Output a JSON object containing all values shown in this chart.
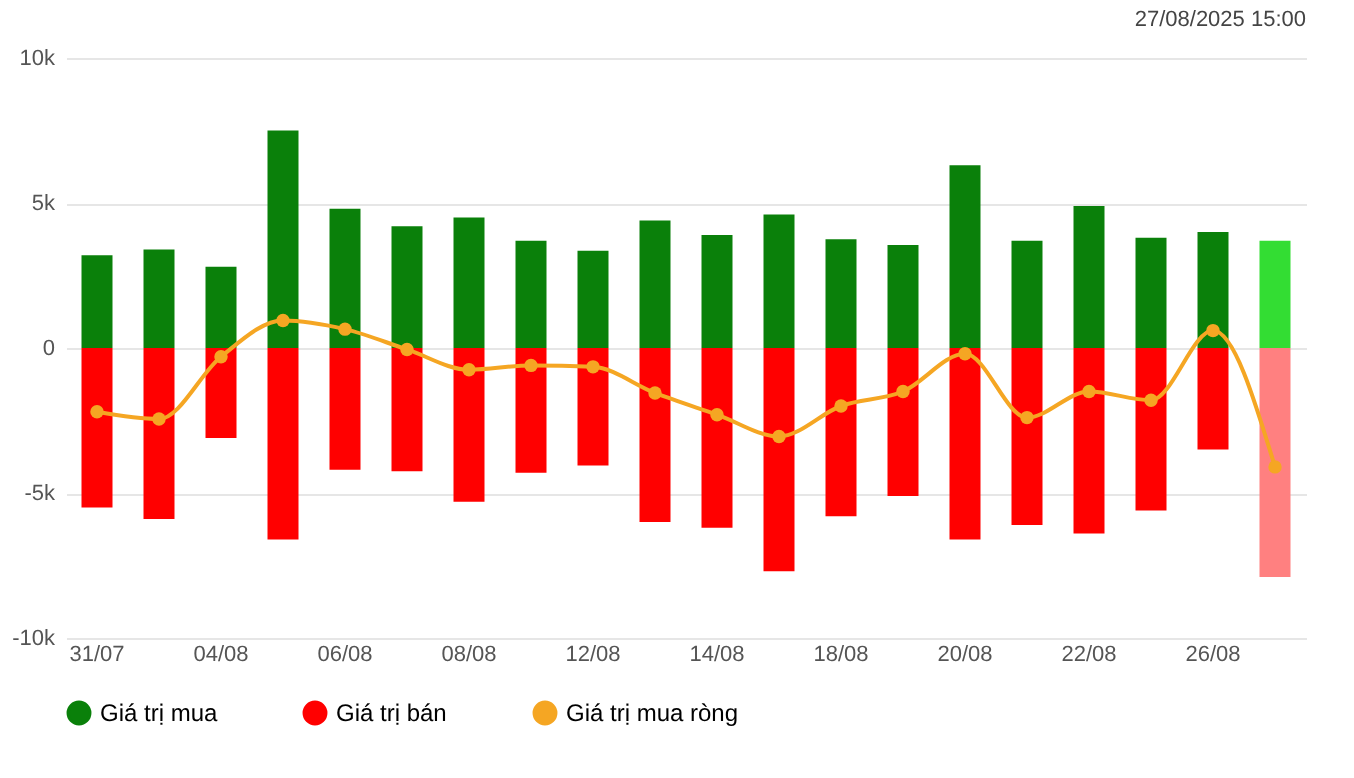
{
  "chart_data": {
    "type": "bar",
    "categories": [
      "31/07",
      null,
      "04/08",
      null,
      "06/08",
      null,
      "08/08",
      null,
      "12/08",
      null,
      "14/08",
      null,
      "18/08",
      null,
      "20/08",
      null,
      "22/08",
      null,
      "26/08",
      null
    ],
    "series": [
      {
        "name": "Giá trị mua",
        "color": "#0a800a",
        "colors": [
          "#0a800a",
          "#0a800a",
          "#0a800a",
          "#0a800a",
          "#0a800a",
          "#0a800a",
          "#0a800a",
          "#0a800a",
          "#0a800a",
          "#0a800a",
          "#0a800a",
          "#0a800a",
          "#0a800a",
          "#0a800a",
          "#0a800a",
          "#0a800a",
          "#0a800a",
          "#0a800a",
          "#0a800a",
          "#33dd33"
        ],
        "values": [
          3200,
          3400,
          2800,
          7500,
          4800,
          4200,
          4500,
          3700,
          3350,
          4400,
          3900,
          4600,
          3750,
          3550,
          6300,
          3700,
          4900,
          3800,
          4000,
          3700
        ]
      },
      {
        "name": "Giá trị bán",
        "color": "#ff0000",
        "colors": [
          "#ff0000",
          "#ff0000",
          "#ff0000",
          "#ff0000",
          "#ff0000",
          "#ff0000",
          "#ff0000",
          "#ff0000",
          "#ff0000",
          "#ff0000",
          "#ff0000",
          "#ff0000",
          "#ff0000",
          "#ff0000",
          "#ff0000",
          "#ff0000",
          "#ff0000",
          "#ff0000",
          "#ff0000",
          "#ff8080"
        ],
        "values": [
          -5500,
          -5900,
          -3100,
          -6600,
          -4200,
          -4250,
          -5300,
          -4300,
          -4050,
          -6000,
          -6200,
          -7700,
          -5800,
          -5100,
          -6600,
          -6100,
          -6400,
          -5600,
          -3500,
          -7900
        ]
      },
      {
        "name": "Giá trị mua ròng",
        "type": "line",
        "color": "#f5a623",
        "values": [
          -2200,
          -2450,
          -300,
          950,
          650,
          -50,
          -750,
          -600,
          -650,
          -1550,
          -2300,
          -3050,
          -2000,
          -1500,
          -200,
          -2400,
          -1500,
          -1800,
          600,
          -4100
        ]
      }
    ],
    "ylim": [
      -10000,
      10000
    ],
    "yticks": [
      {
        "value": -10000,
        "label": "-10k"
      },
      {
        "value": -5000,
        "label": "-5k"
      },
      0,
      {
        "value": 5000,
        "label": "5k"
      },
      {
        "value": 10000,
        "label": "10k"
      }
    ],
    "stacked": true,
    "grid": "y",
    "legend": "bottom",
    "marker": "circle",
    "line_style": "solid",
    "annotations": [
      "27/08/2025 15:00"
    ]
  }
}
